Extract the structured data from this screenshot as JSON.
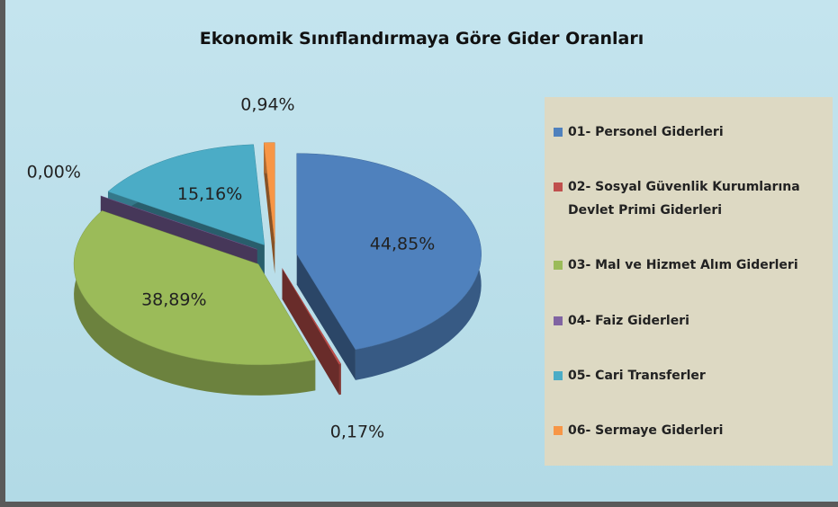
{
  "chart_data": {
    "type": "pie3d",
    "title": "Ekonomik Sınıflandırmaya Göre Gider Oranları",
    "categories": [
      "01- Personel Giderleri",
      "02- Sosyal Güvenlik Kurumlarına Devlet Primi Giderleri",
      "03- Mal ve Hizmet Alım Giderleri",
      "04- Faiz Giderleri",
      "05- Cari Transferler",
      "06- Sermaye Giderleri"
    ],
    "values": [
      44.85,
      0.17,
      38.89,
      0.0,
      15.16,
      0.94
    ],
    "value_labels": [
      "44,85%",
      "0,17%",
      "38,89%",
      "0,00%",
      "15,16%",
      "0,94%"
    ],
    "colors": [
      "#4f81bd",
      "#c0504d",
      "#9bbb59",
      "#8064a2",
      "#4bacc6",
      "#f79646"
    ],
    "legend": "right"
  }
}
